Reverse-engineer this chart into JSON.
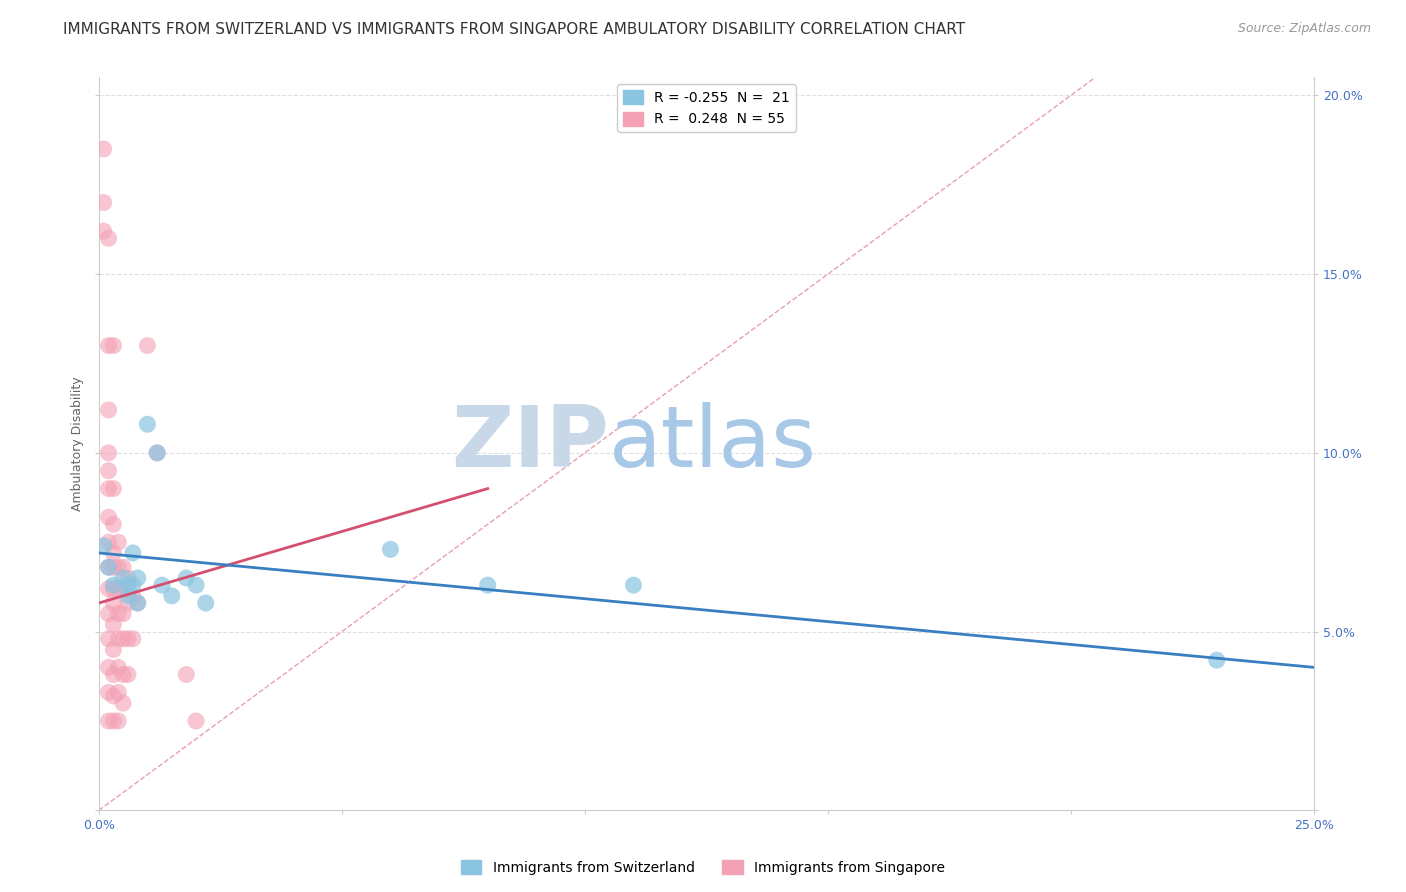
{
  "title": "IMMIGRANTS FROM SWITZERLAND VS IMMIGRANTS FROM SINGAPORE AMBULATORY DISABILITY CORRELATION CHART",
  "source": "Source: ZipAtlas.com",
  "ylabel": "Ambulatory Disability",
  "xlim": [
    0.0,
    0.25
  ],
  "ylim": [
    0.0,
    0.205
  ],
  "xticks": [
    0.0,
    0.05,
    0.1,
    0.15,
    0.2,
    0.25
  ],
  "xtick_labels": [
    "0.0%",
    "",
    "",
    "",
    "",
    "25.0%"
  ],
  "yticks": [
    0.0,
    0.05,
    0.1,
    0.15,
    0.2
  ],
  "ytick_labels_right": [
    "",
    "5.0%",
    "10.0%",
    "15.0%",
    "20.0%"
  ],
  "legend_entries": [
    {
      "label": "R = -0.255  N =  21",
      "color": "#89c4e1"
    },
    {
      "label": "R =  0.248  N = 55",
      "color": "#f4a0b5"
    }
  ],
  "legend_bottom": [
    {
      "label": "Immigrants from Switzerland",
      "color": "#89c4e1"
    },
    {
      "label": "Immigrants from Singapore",
      "color": "#f4a0b5"
    }
  ],
  "switzerland_points": [
    [
      0.001,
      0.074
    ],
    [
      0.002,
      0.068
    ],
    [
      0.003,
      0.063
    ],
    [
      0.005,
      0.065
    ],
    [
      0.006,
      0.063
    ],
    [
      0.006,
      0.06
    ],
    [
      0.007,
      0.072
    ],
    [
      0.007,
      0.063
    ],
    [
      0.008,
      0.065
    ],
    [
      0.008,
      0.058
    ],
    [
      0.01,
      0.108
    ],
    [
      0.012,
      0.1
    ],
    [
      0.013,
      0.063
    ],
    [
      0.015,
      0.06
    ],
    [
      0.018,
      0.065
    ],
    [
      0.02,
      0.063
    ],
    [
      0.022,
      0.058
    ],
    [
      0.06,
      0.073
    ],
    [
      0.08,
      0.063
    ],
    [
      0.11,
      0.063
    ],
    [
      0.23,
      0.042
    ]
  ],
  "singapore_points": [
    [
      0.001,
      0.185
    ],
    [
      0.001,
      0.17
    ],
    [
      0.001,
      0.162
    ],
    [
      0.002,
      0.16
    ],
    [
      0.002,
      0.13
    ],
    [
      0.002,
      0.112
    ],
    [
      0.002,
      0.1
    ],
    [
      0.002,
      0.095
    ],
    [
      0.002,
      0.09
    ],
    [
      0.002,
      0.082
    ],
    [
      0.002,
      0.075
    ],
    [
      0.002,
      0.068
    ],
    [
      0.002,
      0.062
    ],
    [
      0.002,
      0.055
    ],
    [
      0.002,
      0.048
    ],
    [
      0.002,
      0.04
    ],
    [
      0.002,
      0.033
    ],
    [
      0.002,
      0.025
    ],
    [
      0.003,
      0.13
    ],
    [
      0.003,
      0.09
    ],
    [
      0.003,
      0.08
    ],
    [
      0.003,
      0.072
    ],
    [
      0.003,
      0.068
    ],
    [
      0.003,
      0.062
    ],
    [
      0.003,
      0.058
    ],
    [
      0.003,
      0.052
    ],
    [
      0.003,
      0.045
    ],
    [
      0.003,
      0.038
    ],
    [
      0.003,
      0.032
    ],
    [
      0.003,
      0.025
    ],
    [
      0.004,
      0.075
    ],
    [
      0.004,
      0.068
    ],
    [
      0.004,
      0.062
    ],
    [
      0.004,
      0.055
    ],
    [
      0.004,
      0.048
    ],
    [
      0.004,
      0.04
    ],
    [
      0.004,
      0.033
    ],
    [
      0.004,
      0.025
    ],
    [
      0.005,
      0.068
    ],
    [
      0.005,
      0.062
    ],
    [
      0.005,
      0.055
    ],
    [
      0.005,
      0.048
    ],
    [
      0.005,
      0.038
    ],
    [
      0.005,
      0.03
    ],
    [
      0.006,
      0.065
    ],
    [
      0.006,
      0.058
    ],
    [
      0.006,
      0.048
    ],
    [
      0.006,
      0.038
    ],
    [
      0.007,
      0.06
    ],
    [
      0.007,
      0.048
    ],
    [
      0.008,
      0.058
    ],
    [
      0.01,
      0.13
    ],
    [
      0.012,
      0.1
    ],
    [
      0.018,
      0.038
    ],
    [
      0.02,
      0.025
    ]
  ],
  "switzerland_line": {
    "x0": 0.0,
    "y0": 0.072,
    "x1": 0.25,
    "y1": 0.04
  },
  "singapore_line": {
    "x0": 0.0,
    "y0": 0.058,
    "x1": 0.08,
    "y1": 0.09
  },
  "diagonal_line_color": "#e8a0b0",
  "switzerland_color": "#89c4e1",
  "singapore_color": "#f4a0b5",
  "switzerland_line_color": "#3a7fc1",
  "singapore_line_color": "#d45070",
  "watermark_zip_color": "#c8d8e8",
  "watermark_atlas_color": "#a8c8e8",
  "background_color": "#ffffff",
  "grid_color": "#e0e0e0",
  "title_fontsize": 11,
  "axis_label_fontsize": 9,
  "tick_fontsize": 9,
  "legend_fontsize": 10,
  "source_fontsize": 9
}
